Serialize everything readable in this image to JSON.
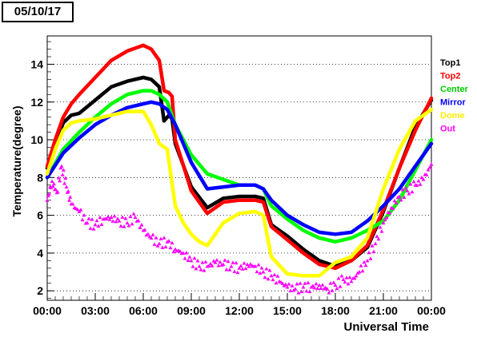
{
  "date_label": "05/10/17",
  "chart_data": {
    "type": "line",
    "title": "",
    "xlabel": "Universal Time",
    "ylabel": "Temperature(degree)",
    "xlim": [
      0,
      24
    ],
    "ylim": [
      1.5,
      15.5
    ],
    "x_ticks": [
      {
        "value": 0,
        "label": "00:00"
      },
      {
        "value": 3,
        "label": "03:00"
      },
      {
        "value": 6,
        "label": "06:00"
      },
      {
        "value": 9,
        "label": "09:00"
      },
      {
        "value": 12,
        "label": "12:00"
      },
      {
        "value": 15,
        "label": "15:00"
      },
      {
        "value": 18,
        "label": "18:00"
      },
      {
        "value": 21,
        "label": "21:00"
      },
      {
        "value": 24,
        "label": "00:00"
      }
    ],
    "y_ticks": [
      2,
      4,
      6,
      8,
      10,
      12,
      14
    ],
    "grid": "horizontal dotted",
    "legend_position": "right",
    "series": [
      {
        "name": "Top1",
        "color": "#000000",
        "x": [
          0,
          0.5,
          1,
          1.5,
          2,
          3,
          4,
          5,
          6,
          6.5,
          7,
          7.3,
          7.6,
          7.8,
          8,
          9,
          10,
          11,
          12,
          13,
          13.5,
          14,
          15,
          16,
          17,
          18,
          19,
          20,
          21,
          22,
          23,
          24
        ],
        "values": [
          8.5,
          9.8,
          10.9,
          11.3,
          11.4,
          12.1,
          12.8,
          13.1,
          13.3,
          13.2,
          12.8,
          11.0,
          11.3,
          11.1,
          9.8,
          7.5,
          6.4,
          6.9,
          7.0,
          7.0,
          6.9,
          5.5,
          4.9,
          4.2,
          3.6,
          3.3,
          3.6,
          4.3,
          6.2,
          8.5,
          10.7,
          12.1
        ]
      },
      {
        "name": "Top2",
        "color": "#ff0000",
        "x": [
          0,
          0.5,
          1,
          1.5,
          2,
          3,
          4,
          5,
          6,
          6.5,
          7,
          7.3,
          7.6,
          7.8,
          8,
          9,
          10,
          11,
          12,
          13,
          13.5,
          14,
          15,
          16,
          17,
          18,
          19,
          20,
          21,
          22,
          23,
          24
        ],
        "values": [
          8.6,
          10.0,
          11.2,
          11.9,
          12.4,
          13.3,
          14.2,
          14.7,
          15.0,
          14.8,
          14.2,
          12.6,
          12.5,
          12.3,
          10.0,
          7.3,
          6.1,
          6.7,
          6.8,
          6.8,
          6.7,
          5.4,
          4.7,
          4.0,
          3.4,
          3.2,
          3.6,
          4.4,
          6.3,
          8.5,
          10.5,
          12.2
        ]
      },
      {
        "name": "Center",
        "color": "#00ff00",
        "x": [
          0,
          1,
          2,
          3,
          4,
          5,
          6,
          6.5,
          7,
          7.5,
          8,
          9,
          10,
          11,
          12,
          13,
          13.5,
          14,
          15,
          16,
          17,
          18,
          19,
          20,
          21,
          22,
          23,
          24
        ],
        "values": [
          8.0,
          9.5,
          10.4,
          11.2,
          11.9,
          12.4,
          12.6,
          12.6,
          12.4,
          12.0,
          10.8,
          9.2,
          8.2,
          7.9,
          7.6,
          7.6,
          7.4,
          6.5,
          5.8,
          5.2,
          4.8,
          4.6,
          4.8,
          5.2,
          5.7,
          6.8,
          8.4,
          10.0
        ]
      },
      {
        "name": "Mirror",
        "color": "#0000ff",
        "x": [
          0,
          1,
          2,
          3,
          4,
          5,
          6,
          6.5,
          7,
          7.5,
          8,
          9,
          10,
          11,
          12,
          13,
          13.5,
          14,
          15,
          16,
          17,
          18,
          19,
          20,
          21,
          22,
          23,
          24
        ],
        "values": [
          8.0,
          9.3,
          10.1,
          10.8,
          11.3,
          11.7,
          11.9,
          12.0,
          11.9,
          11.6,
          10.8,
          8.8,
          7.4,
          7.5,
          7.6,
          7.6,
          7.4,
          6.8,
          6.0,
          5.5,
          5.1,
          5.0,
          5.1,
          5.7,
          6.5,
          7.4,
          8.6,
          9.8
        ]
      },
      {
        "name": "Dome",
        "color": "#ffff00",
        "x": [
          0,
          0.5,
          1,
          1.5,
          2,
          3,
          4,
          5,
          6,
          6.5,
          7,
          7.5,
          8,
          8.5,
          9,
          9.5,
          10,
          11,
          12,
          13,
          13.5,
          14,
          15,
          16,
          17,
          18,
          19,
          20,
          21,
          22,
          23,
          24
        ],
        "values": [
          8.2,
          9.5,
          10.5,
          10.9,
          11.0,
          11.1,
          11.3,
          11.5,
          11.5,
          10.8,
          9.8,
          9.5,
          6.5,
          5.6,
          5.0,
          4.6,
          4.4,
          5.6,
          6.1,
          6.2,
          6.0,
          3.8,
          2.9,
          2.8,
          2.8,
          3.5,
          3.8,
          4.8,
          7.4,
          9.5,
          11.0,
          11.6
        ]
      },
      {
        "name": "Out",
        "color": "#ff00ff",
        "x": [
          0,
          0.3,
          0.6,
          0.9,
          1.2,
          1.5,
          2,
          2.5,
          3,
          3.5,
          4,
          4.5,
          5,
          5.5,
          6,
          6.5,
          7,
          7.5,
          8,
          8.5,
          9,
          9.5,
          10,
          10.5,
          11,
          11.5,
          12,
          12.5,
          13,
          13.5,
          14,
          14.5,
          15,
          15.5,
          16,
          16.5,
          17,
          17.5,
          18,
          18.5,
          19,
          19.5,
          20,
          20.5,
          21,
          21.5,
          22,
          22.5,
          23,
          23.5,
          24
        ],
        "values": [
          6.8,
          7.8,
          7.2,
          8.6,
          7.5,
          6.6,
          6.2,
          5.6,
          5.5,
          5.8,
          5.9,
          5.7,
          5.6,
          5.9,
          5.2,
          4.8,
          4.5,
          4.6,
          4.2,
          4.0,
          3.6,
          3.3,
          3.3,
          3.5,
          3.4,
          3.3,
          3.2,
          3.4,
          3.3,
          3.0,
          2.8,
          2.5,
          2.2,
          2.1,
          2.2,
          2.2,
          2.3,
          2.1,
          2.3,
          2.6,
          2.5,
          3.0,
          3.6,
          4.5,
          5.6,
          6.4,
          7.0,
          7.3,
          7.6,
          7.9,
          8.7
        ]
      }
    ]
  }
}
